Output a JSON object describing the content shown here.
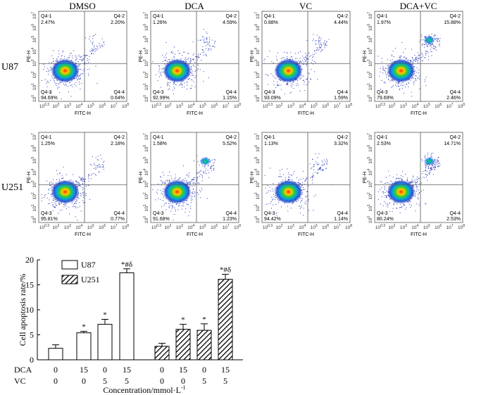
{
  "flow": {
    "columns": [
      "DMSO",
      "DCA",
      "VC",
      "DCA+VC"
    ],
    "rows": [
      "U87",
      "U251"
    ],
    "x_axis_label": "FITC-H",
    "y_axis_label": "PE-H",
    "tick_labels": [
      "10^0.3",
      "10^2",
      "10^3",
      "10^4",
      "10^5",
      "10^6",
      "10^7",
      "10^8"
    ],
    "y_tick_labels": [
      "10^7",
      "10^6",
      "10^5",
      "10^4",
      "10^3",
      "10^2",
      "10^1",
      "10^0"
    ],
    "quadrant_names": [
      "Q4-1",
      "Q4-2",
      "Q4-3",
      "Q4-4"
    ],
    "panels": [
      {
        "row": "U87",
        "col": "DMSO",
        "q1": "2.47%",
        "q2": "2.20%",
        "q3": "94.69%",
        "q4": "0.64%"
      },
      {
        "row": "U87",
        "col": "DCA",
        "q1": "1.26%",
        "q2": "4.59%",
        "q3": "92.99%",
        "q4": "1.15%"
      },
      {
        "row": "U87",
        "col": "VC",
        "q1": "0.88%",
        "q2": "4.44%",
        "q3": "93.09%",
        "q4": "1.59%"
      },
      {
        "row": "U87",
        "col": "DCA+VC",
        "q1": "1.97%",
        "q2": "15.88%",
        "q3": "79.69%",
        "q4": "2.46%"
      },
      {
        "row": "U251",
        "col": "DMSO",
        "q1": "1.25%",
        "q2": "2.18%",
        "q3": "95.81%",
        "q4": "0.77%"
      },
      {
        "row": "U251",
        "col": "DCA",
        "q1": "1.58%",
        "q2": "5.52%",
        "q3": "91.68%",
        "q4": "1.23%"
      },
      {
        "row": "U251",
        "col": "VC",
        "q1": "1.13%",
        "q2": "3.32%",
        "q3": "94.42%",
        "q4": "1.14%"
      },
      {
        "row": "U251",
        "col": "DCA+VC",
        "q1": "2.53%",
        "q2": "14.71%",
        "q3": "80.24%",
        "q4": "2.53%"
      }
    ]
  },
  "chart_data": {
    "type": "bar",
    "ylabel": "Cell apoptosis rate/%",
    "xlabel": "Concentration/mmol·L",
    "xlabel_superscript": "-1",
    "ylim": [
      0,
      20
    ],
    "yticks": [
      0,
      5,
      10,
      15,
      20
    ],
    "row_labels": [
      "DCA",
      "VC"
    ],
    "dca": [
      "0",
      "15",
      "0",
      "15"
    ],
    "vc": [
      "0",
      "0",
      "5",
      "5"
    ],
    "series": [
      {
        "name": "U87",
        "values": [
          2.3,
          5.4,
          7.1,
          17.4
        ],
        "errors": [
          0.7,
          0.3,
          1.0,
          0.8
        ],
        "marks": [
          "",
          "*",
          "*",
          "*#δ"
        ],
        "fill": "#ffffff"
      },
      {
        "name": "U251",
        "values": [
          2.7,
          6.1,
          5.9,
          16.1
        ],
        "errors": [
          0.6,
          1.0,
          1.3,
          1.0
        ],
        "marks": [
          "",
          "*",
          "*",
          "*#δ"
        ],
        "fill": "hatched"
      }
    ]
  }
}
